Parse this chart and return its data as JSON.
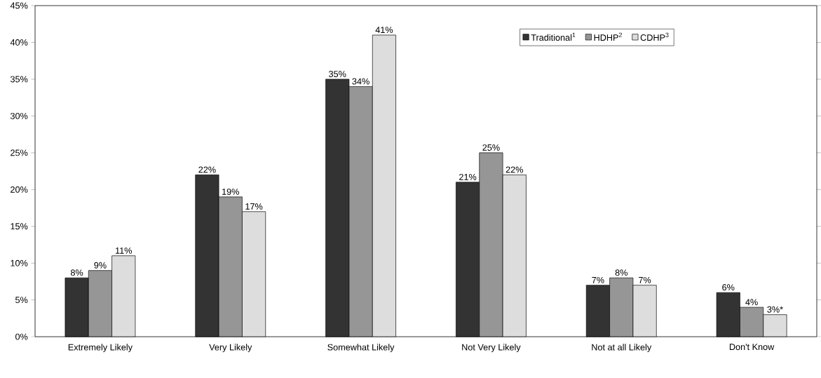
{
  "chart_data": {
    "type": "bar",
    "categories": [
      "Extremely Likely",
      "Very Likely",
      "Somewhat Likely",
      "Not Very Likely",
      "Not at all Likely",
      "Don't Know"
    ],
    "series": [
      {
        "name": "Traditional$^{1}$",
        "color": "#333333",
        "values": [
          8,
          22,
          35,
          21,
          7,
          6
        ],
        "value_labels": [
          "8%",
          "22%",
          "35%",
          "21%",
          "7%",
          "6%"
        ]
      },
      {
        "name": "HDHP$^{2}$",
        "color": "#969696",
        "values": [
          9,
          19,
          34,
          25,
          8,
          4
        ],
        "value_labels": [
          "9%",
          "19%",
          "34%",
          "25%",
          "8%",
          "4%"
        ]
      },
      {
        "name": "CDHP$^{3}$",
        "color": "#dddddd",
        "values": [
          11,
          17,
          41,
          22,
          7,
          3
        ],
        "value_labels": [
          "11%",
          "17%",
          "41%",
          "22%",
          "7%",
          "3%*"
        ]
      }
    ],
    "ylim": [
      0,
      45
    ],
    "yticks": [
      {
        "value": 0,
        "label": "0%"
      },
      {
        "value": 5,
        "label": "5%"
      },
      {
        "value": 10,
        "label": "10%"
      },
      {
        "value": 15,
        "label": "15%"
      },
      {
        "value": 20,
        "label": "20%"
      },
      {
        "value": 25,
        "label": "25%"
      },
      {
        "value": 30,
        "label": "30%"
      },
      {
        "value": 35,
        "label": "35%"
      },
      {
        "value": 40,
        "label": "40%"
      },
      {
        "value": 45,
        "label": "45%"
      }
    ],
    "grid": false,
    "legend": "top right"
  }
}
